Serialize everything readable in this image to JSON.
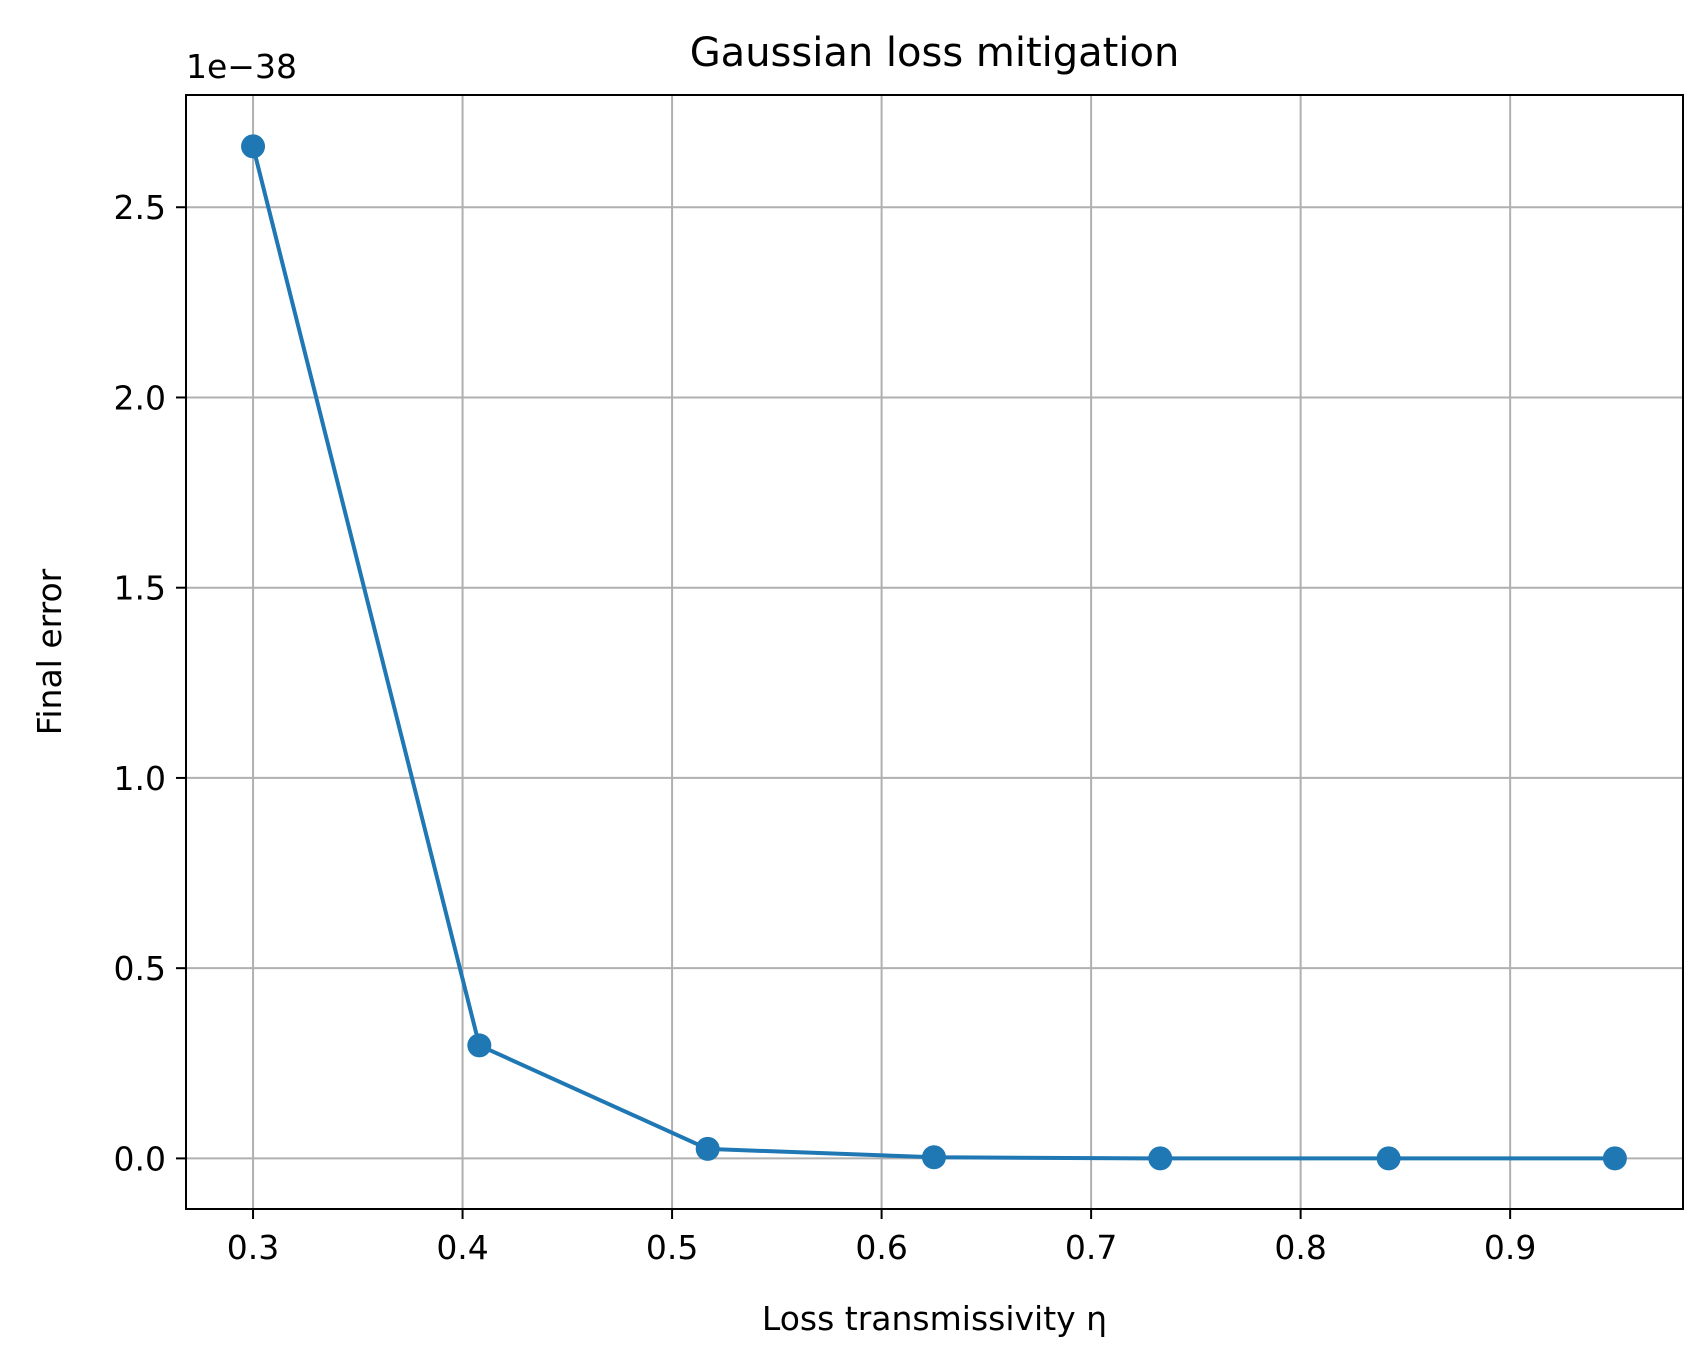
{
  "chart_data": {
    "type": "line",
    "title": "Gaussian loss mitigation",
    "xlabel": "Loss transmissivity η",
    "ylabel": "Final error",
    "y_offset_label": "1e−38",
    "xlim": [
      0.268,
      0.9825
    ],
    "ylim": [
      -0.133,
      2.795
    ],
    "x_ticks": [
      0.3,
      0.4,
      0.5,
      0.6,
      0.7,
      0.8,
      0.9
    ],
    "x_tick_labels": [
      "0.3",
      "0.4",
      "0.5",
      "0.6",
      "0.7",
      "0.8",
      "0.9"
    ],
    "y_ticks": [
      0.0,
      0.5,
      1.0,
      1.5,
      2.0,
      2.5
    ],
    "y_tick_labels": [
      "0.0",
      "0.5",
      "1.0",
      "1.5",
      "2.0",
      "2.5"
    ],
    "grid": true,
    "series": [
      {
        "x": [
          0.3,
          0.408,
          0.517,
          0.625,
          0.733,
          0.842,
          0.95
        ],
        "y": [
          2.66,
          0.297,
          0.025,
          0.003,
          0.0,
          0.0,
          0.0
        ],
        "color": "#1f77b4",
        "marker": "circle"
      }
    ]
  }
}
